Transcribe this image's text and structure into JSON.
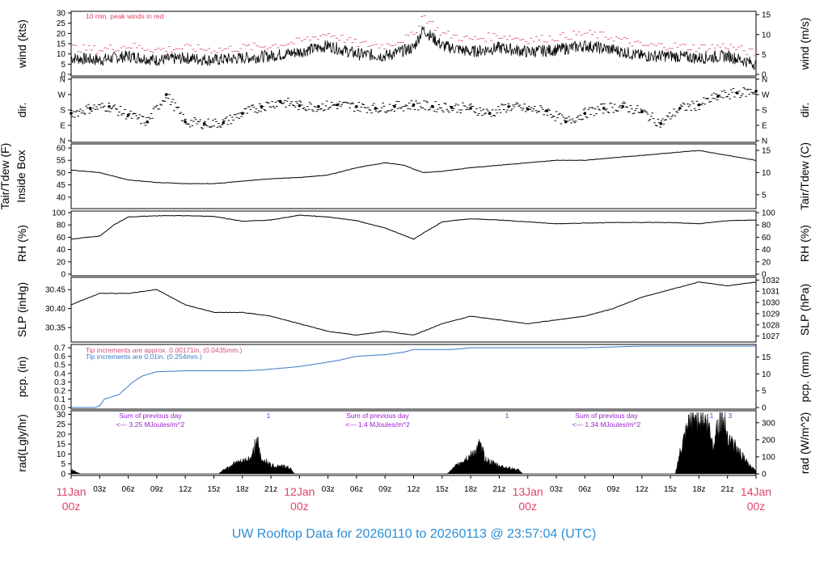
{
  "title": "UW Rooftop Data for 20260110  to  20260113 @ 23:57:04  (UTC)",
  "colors": {
    "peak": "#dd4466",
    "title": "#2a8fd6",
    "pcp_blue": "#3b78c8",
    "pcp_red": "#d05070",
    "purple": "#9a1fd0",
    "date": "#dd4466",
    "trace": "#000000"
  },
  "time_axis": {
    "hour_labels": [
      "03z",
      "06z",
      "09z",
      "12z",
      "15z",
      "18z",
      "21z",
      "03z",
      "06z",
      "09z",
      "12z",
      "15z",
      "18z",
      "21z",
      "03z",
      "06z",
      "09z",
      "12z",
      "15z",
      "18z",
      "21z"
    ],
    "day_labels": [
      {
        "date": "11Jan",
        "hour": "00z"
      },
      {
        "date": "12Jan",
        "hour": "00z"
      },
      {
        "date": "13Jan",
        "hour": "00z"
      },
      {
        "date": "14Jan",
        "hour": "00z"
      }
    ]
  },
  "chart_data": [
    {
      "type": "line",
      "panel": "wind",
      "ylabel_left": "wind (kts)",
      "ylabel_right": "wind (m/s)",
      "left_ticks": [
        "0",
        "5",
        "10",
        "15",
        "20",
        "25",
        "30"
      ],
      "right_ticks": [
        "0",
        "5",
        "10",
        "15"
      ],
      "ylim": [
        0,
        30
      ],
      "annotation": "10 min. peak winds in red",
      "x_unit": "hours since 11Jan 00z",
      "series": [
        {
          "label": "wind speed (kts)",
          "x": [
            0,
            3,
            6,
            9,
            12,
            15,
            18,
            21,
            24,
            27,
            30,
            33,
            36,
            37,
            39,
            42,
            45,
            48,
            51,
            54,
            57,
            60,
            63,
            66,
            69,
            72
          ],
          "values": [
            8,
            7,
            9,
            7,
            8,
            7,
            8,
            9,
            11,
            14,
            10,
            9,
            13,
            22,
            14,
            11,
            13,
            11,
            12,
            14,
            12,
            9,
            9,
            8,
            9,
            5
          ]
        },
        {
          "label": "10 min. peak winds (kts)",
          "x": [
            0,
            3,
            6,
            9,
            12,
            15,
            18,
            21,
            24,
            27,
            30,
            33,
            36,
            37,
            39,
            42,
            45,
            48,
            51,
            54,
            57,
            60,
            63,
            66,
            69,
            72
          ],
          "values": [
            13,
            12,
            14,
            12,
            13,
            12,
            13,
            14,
            16,
            20,
            15,
            14,
            19,
            29,
            20,
            17,
            19,
            17,
            18,
            20,
            18,
            14,
            14,
            13,
            14,
            10
          ]
        }
      ]
    },
    {
      "type": "scatter",
      "panel": "direction",
      "ylabel_left": "dir.",
      "ylabel_right": "dir.",
      "left_ticks": [
        "N",
        "E",
        "S",
        "W",
        "N"
      ],
      "right_ticks": [
        "N",
        "E",
        "S",
        "W",
        "N"
      ],
      "x_unit": "hours since 11Jan 00z",
      "series": [
        {
          "label": "wind direction (deg)",
          "x": [
            0,
            2,
            4,
            6,
            8,
            10,
            12,
            14,
            16,
            18,
            20,
            22,
            24,
            26,
            28,
            30,
            32,
            34,
            36,
            38,
            40,
            42,
            44,
            46,
            48,
            50,
            52,
            54,
            56,
            58,
            60,
            62,
            64,
            66,
            68,
            70,
            72
          ],
          "values": [
            160,
            190,
            200,
            150,
            110,
            270,
            110,
            100,
            105,
            160,
            200,
            230,
            205,
            200,
            210,
            200,
            190,
            200,
            210,
            200,
            195,
            190,
            160,
            200,
            185,
            175,
            110,
            160,
            190,
            200,
            170,
            100,
            190,
            210,
            260,
            280,
            290
          ]
        }
      ]
    },
    {
      "type": "line",
      "panel": "temperature",
      "ylabel_left": "Tair/Tdew (F)",
      "ylabel_left2": "Inside Box",
      "ylabel_right": "Tair/Tdew (C)",
      "left_ticks": [
        "40",
        "45",
        "50",
        "55",
        "60"
      ],
      "right_ticks": [
        "5",
        "10",
        "15"
      ],
      "ylim": [
        36,
        61
      ],
      "x_unit": "hours since 11Jan 00z",
      "series": [
        {
          "label": "Tair (F)",
          "x": [
            0,
            3,
            6,
            9,
            12,
            15,
            18,
            21,
            24,
            27,
            30,
            33,
            35,
            37,
            39,
            42,
            45,
            48,
            51,
            54,
            57,
            60,
            63,
            66,
            69,
            72
          ],
          "values": [
            51,
            50,
            47,
            46,
            45.5,
            45.5,
            46.5,
            47.5,
            48,
            49,
            52,
            54,
            53,
            50,
            50.5,
            52,
            53,
            54,
            55,
            55,
            56,
            57,
            58,
            59,
            57,
            55
          ]
        }
      ]
    },
    {
      "type": "line",
      "panel": "humidity",
      "ylabel_left": "RH (%)",
      "ylabel_right": "RH (%)",
      "left_ticks": [
        "0",
        "20",
        "40",
        "60",
        "80",
        "100"
      ],
      "right_ticks": [
        "0",
        "20",
        "40",
        "60",
        "80",
        "100"
      ],
      "ylim": [
        0,
        100
      ],
      "x_unit": "hours since 11Jan 00z",
      "series": [
        {
          "label": "RH (%)",
          "x": [
            0,
            3,
            4.5,
            6,
            9,
            12,
            15,
            18,
            21,
            24,
            27,
            30,
            33,
            36,
            39,
            42,
            45,
            48,
            51,
            54,
            57,
            60,
            63,
            66,
            69,
            72
          ],
          "values": [
            57,
            62,
            80,
            93,
            95,
            95,
            94,
            86,
            88,
            96,
            93,
            87,
            75,
            57,
            85,
            90,
            88,
            85,
            82,
            83,
            84,
            84,
            84,
            82,
            87,
            88
          ]
        }
      ]
    },
    {
      "type": "line",
      "panel": "pressure",
      "ylabel_left": "SLP (inHg)",
      "ylabel_right": "SLP (hPa)",
      "left_ticks": [
        "30.35",
        "30.40",
        "30.45"
      ],
      "right_ticks": [
        "1027",
        "1028",
        "1029",
        "1030",
        "1031",
        "1032"
      ],
      "ylim": [
        30.316,
        30.478
      ],
      "x_unit": "hours since 11Jan 00z",
      "series": [
        {
          "label": "SLP (inHg)",
          "x": [
            0,
            3,
            6,
            9,
            12,
            15,
            18,
            21,
            24,
            27,
            30,
            33,
            36,
            39,
            42,
            45,
            48,
            51,
            54,
            57,
            60,
            63,
            66,
            69,
            72
          ],
          "values": [
            30.41,
            30.44,
            30.44,
            30.45,
            30.41,
            30.39,
            30.39,
            30.38,
            30.36,
            30.34,
            30.33,
            30.34,
            30.33,
            30.36,
            30.38,
            30.37,
            30.36,
            30.37,
            30.38,
            30.4,
            30.43,
            30.45,
            30.47,
            30.46,
            30.47
          ]
        }
      ]
    },
    {
      "type": "line",
      "panel": "precipitation",
      "ylabel_left": "pcp. (in)",
      "ylabel_right": "pcp. (mm)",
      "left_ticks": [
        "0.0",
        "0.1",
        "0.2",
        "0.3",
        "0.4",
        "0.5",
        "0.6",
        "0.7"
      ],
      "right_ticks": [
        "0",
        "5",
        "10",
        "15"
      ],
      "ylim": [
        0,
        0.72
      ],
      "annotation_red": "Tip increments are approx. 0.00171in. (0.0435mm.)",
      "annotation_blue": "Tip increments are 0.01in. (0.254mm.)",
      "x_unit": "hours since 11Jan 00z",
      "series": [
        {
          "label": "cumulative precipitation (in)",
          "x": [
            0,
            2.5,
            3,
            3.5,
            5,
            6.5,
            7.5,
            9,
            12,
            15,
            18,
            20,
            24,
            28,
            30,
            33,
            35,
            36,
            40,
            42,
            45,
            48,
            54,
            60,
            72
          ],
          "values": [
            0,
            0,
            0.02,
            0.1,
            0.15,
            0.3,
            0.37,
            0.42,
            0.43,
            0.43,
            0.43,
            0.44,
            0.48,
            0.55,
            0.6,
            0.62,
            0.65,
            0.68,
            0.68,
            0.7,
            0.7,
            0.7,
            0.7,
            0.72,
            0.72
          ]
        }
      ]
    },
    {
      "type": "area",
      "panel": "radiation",
      "ylabel_left": "rad(Lgly/hr)",
      "ylabel_right": "rad (W/m^2)",
      "left_ticks": [
        "0",
        "5",
        "10",
        "15",
        "20",
        "25",
        "30"
      ],
      "right_ticks": [
        "0",
        "100",
        "200",
        "300"
      ],
      "ylim": [
        0,
        31
      ],
      "annotations": [
        {
          "line1": "Sum of previous day",
          "line2": "<--- 3.25 MJoules/m^2"
        },
        {
          "line1": "Sum of previous day",
          "line2": "<--- 1.4 MJoules/m^2"
        },
        {
          "line1": "Sum of previous day",
          "line2": "<--- 1.34 MJoules/m^2"
        }
      ],
      "markers": [
        "1",
        "1",
        "1",
        "1",
        "3"
      ],
      "x_unit": "hours since 11Jan 00z",
      "series": [
        {
          "label": "solar radiation (Lgly/hr)",
          "x": [
            0,
            0.5,
            1,
            15.5,
            16,
            17,
            18,
            19,
            19.5,
            20,
            20.5,
            21,
            22,
            23,
            23.5,
            39.5,
            40,
            41,
            42,
            43,
            43.5,
            44,
            45,
            46,
            47,
            47.5,
            63.5,
            64,
            65,
            66,
            67,
            67.5,
            68,
            68.5,
            69,
            70,
            71,
            71.5,
            72
          ],
          "values": [
            2,
            1,
            0,
            0,
            2,
            5,
            6,
            8,
            18,
            6,
            7,
            4,
            4,
            3,
            0,
            0,
            2,
            6,
            9,
            14,
            8,
            6,
            4,
            3,
            2,
            0,
            0,
            10,
            25,
            30,
            24,
            14,
            26,
            28,
            20,
            12,
            6,
            3,
            2
          ]
        }
      ]
    }
  ]
}
